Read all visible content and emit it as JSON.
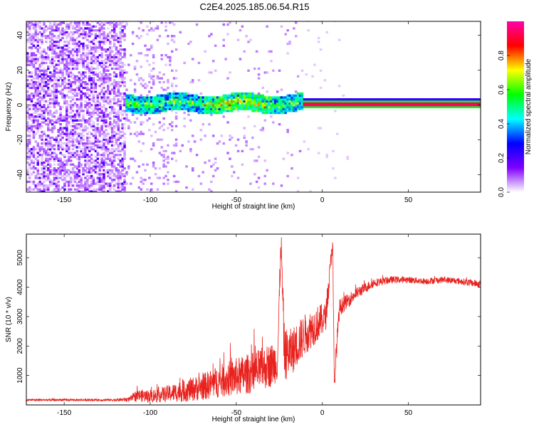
{
  "figure": {
    "title": "C2E4.2025.185.06.54.R15"
  },
  "chart_data": [
    {
      "type": "heatmap",
      "xlabel": "Height of straight line (km)",
      "ylabel": "Frequency (Hz)",
      "xlim": [
        -172,
        92
      ],
      "ylim": [
        -50,
        48
      ],
      "xticks": [
        -150,
        -100,
        -50,
        0,
        50
      ],
      "yticks": [
        -40,
        -20,
        0,
        20,
        40
      ],
      "grid": false,
      "colorbar": {
        "label": "Normalized spectral amplitude",
        "range": [
          0,
          1
        ],
        "ticks": [
          0.0,
          0.2,
          0.4,
          0.6,
          0.8
        ],
        "colormap": [
          "#ffffff",
          "#7f00ff",
          "#0000ff",
          "#00ffff",
          "#00ff00",
          "#ffff00",
          "#ff0000",
          "#ff00aa"
        ]
      },
      "features": {
        "noise_region_x": [
          -172,
          -115
        ],
        "signal_band_start_x": -117,
        "tone_line_start_x": -12,
        "tone_frequency": 0.5,
        "signal_band_halfwidth_hz": 5
      }
    },
    {
      "type": "line",
      "xlabel": "Height of straight line (km)",
      "ylabel": "SNR (10 * v/v)",
      "xlim": [
        -172,
        92
      ],
      "ylim": [
        0,
        5800
      ],
      "xticks": [
        -150,
        -100,
        -50,
        0,
        50
      ],
      "yticks": [
        1000,
        2000,
        3000,
        4000,
        5000
      ],
      "grid": false,
      "series": [
        {
          "color": "#e8221e",
          "x": [
            -172,
            -150,
            -120,
            -112,
            -108,
            -100,
            -90,
            -80,
            -70,
            -60,
            -50,
            -40,
            -30,
            -26,
            -24,
            -22,
            -18,
            -14,
            -10,
            -6,
            -2,
            0,
            2,
            4,
            6,
            7,
            8,
            10,
            14,
            20,
            30,
            40,
            50,
            60,
            70,
            80,
            92
          ],
          "y": [
            170,
            170,
            170,
            190,
            320,
            300,
            380,
            480,
            600,
            800,
            950,
            1100,
            1350,
            1500,
            5600,
            1700,
            1800,
            2100,
            2400,
            2600,
            2800,
            2900,
            3000,
            4200,
            5600,
            600,
            1700,
            3300,
            3500,
            3800,
            4150,
            4250,
            4250,
            4200,
            4250,
            4200,
            4100
          ],
          "noise_amplitude": [
            40,
            40,
            40,
            80,
            200,
            220,
            280,
            380,
            450,
            550,
            650,
            700,
            750,
            700,
            500,
            900,
            800,
            750,
            700,
            650,
            600,
            550,
            450,
            400,
            300,
            200,
            400,
            300,
            250,
            200,
            150,
            120,
            110,
            110,
            110,
            110,
            130
          ]
        }
      ]
    }
  ]
}
